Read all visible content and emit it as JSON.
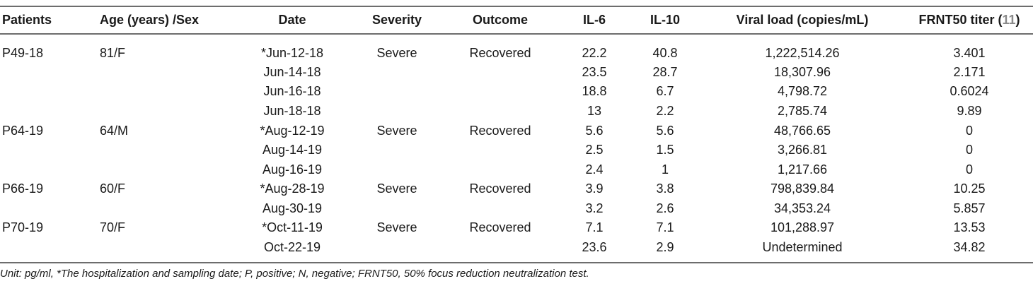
{
  "headers": {
    "patients": "Patients",
    "age_sex": "Age (years) /Sex",
    "date": "Date",
    "severity": "Severity",
    "outcome": "Outcome",
    "il6": "IL-6",
    "il10": "IL-10",
    "viral_load": "Viral load (copies/mL)",
    "frnt50": "FRNT50 titer (",
    "frnt50_ref": "11",
    "frnt50_close": ")"
  },
  "rows": [
    {
      "patient": "P49-18",
      "age_sex": "81/F",
      "date": "*Jun-12-18",
      "severity": "Severe",
      "outcome": "Recovered",
      "il6": "22.2",
      "il10": "40.8",
      "viral_load": "1,222,514.26",
      "frnt50": "3.401"
    },
    {
      "patient": "",
      "age_sex": "",
      "date": "Jun-14-18",
      "severity": "",
      "outcome": "",
      "il6": "23.5",
      "il10": "28.7",
      "viral_load": "18,307.96",
      "frnt50": "2.171"
    },
    {
      "patient": "",
      "age_sex": "",
      "date": "Jun-16-18",
      "severity": "",
      "outcome": "",
      "il6": "18.8",
      "il10": "6.7",
      "viral_load": "4,798.72",
      "frnt50": "0.6024"
    },
    {
      "patient": "",
      "age_sex": "",
      "date": "Jun-18-18",
      "severity": "",
      "outcome": "",
      "il6": "13",
      "il10": "2.2",
      "viral_load": "2,785.74",
      "frnt50": "9.89"
    },
    {
      "patient": "P64-19",
      "age_sex": "64/M",
      "date": "*Aug-12-19",
      "severity": "Severe",
      "outcome": "Recovered",
      "il6": "5.6",
      "il10": "5.6",
      "viral_load": "48,766.65",
      "frnt50": "0"
    },
    {
      "patient": "",
      "age_sex": "",
      "date": "Aug-14-19",
      "severity": "",
      "outcome": "",
      "il6": "2.5",
      "il10": "1.5",
      "viral_load": "3,266.81",
      "frnt50": "0"
    },
    {
      "patient": "",
      "age_sex": "",
      "date": "Aug-16-19",
      "severity": "",
      "outcome": "",
      "il6": "2.4",
      "il10": "1",
      "viral_load": "1,217.66",
      "frnt50": "0"
    },
    {
      "patient": "P66-19",
      "age_sex": "60/F",
      "date": "*Aug-28-19",
      "severity": "Severe",
      "outcome": "Recovered",
      "il6": "3.9",
      "il10": "3.8",
      "viral_load": "798,839.84",
      "frnt50": "10.25"
    },
    {
      "patient": "",
      "age_sex": "",
      "date": "Aug-30-19",
      "severity": "",
      "outcome": "",
      "il6": "3.2",
      "il10": "2.6",
      "viral_load": "34,353.24",
      "frnt50": "5.857"
    },
    {
      "patient": "P70-19",
      "age_sex": "70/F",
      "date": "*Oct-11-19",
      "severity": "Severe",
      "outcome": "Recovered",
      "il6": "7.1",
      "il10": "7.1",
      "viral_load": "101,288.97",
      "frnt50": "13.53"
    },
    {
      "patient": "",
      "age_sex": "",
      "date": "Oct-22-19",
      "severity": "",
      "outcome": "",
      "il6": "23.6",
      "il10": "2.9",
      "viral_load": "Undetermined",
      "frnt50": "34.82"
    }
  ],
  "footnote": "Unit: pg/ml, *The hospitalization and sampling date; P, positive; N, negative; FRNT50, 50% focus reduction neutralization test."
}
